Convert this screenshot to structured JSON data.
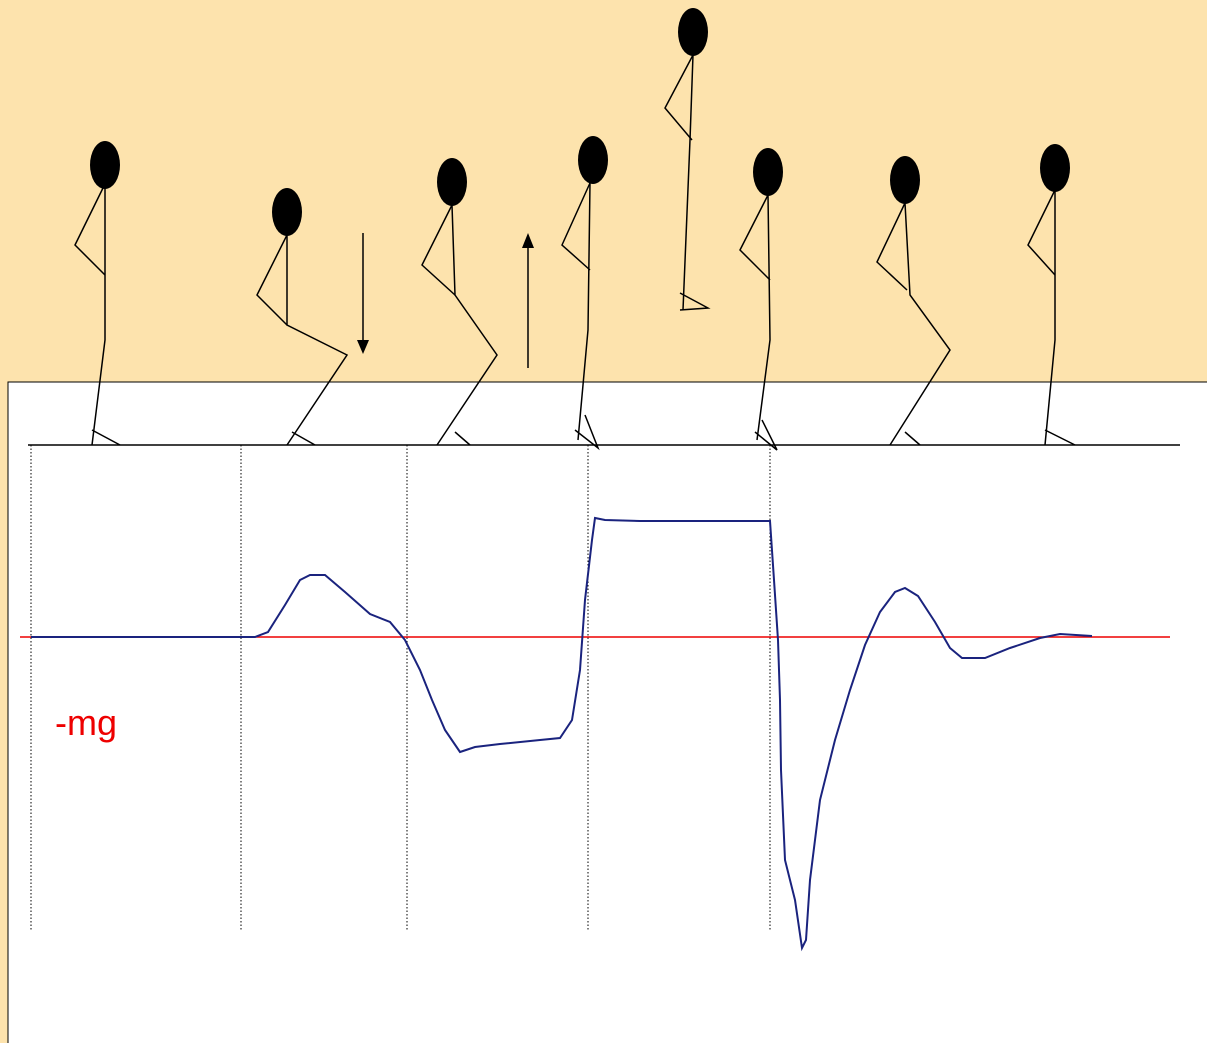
{
  "label": "-mg"
}
